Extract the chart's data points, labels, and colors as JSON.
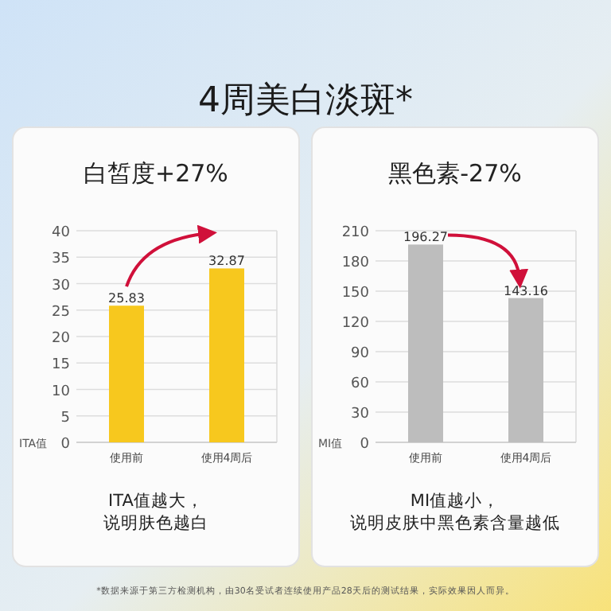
{
  "chart_data": [
    {
      "type": "bar",
      "title": "白皙度+27%",
      "subtitle": [
        "ITA值越大，",
        "说明肤色越白"
      ],
      "ylabel": "ITA值",
      "categories": [
        "使用前",
        "使用4周后"
      ],
      "values": [
        25.83,
        32.87
      ],
      "color": "#f7c81e",
      "ylim": [
        0,
        40
      ],
      "yticks": [
        0,
        5,
        10,
        15,
        20,
        25,
        30,
        35,
        40
      ],
      "grid": "y",
      "data_labels": true,
      "annotations": [
        "4周美白淡斑*"
      ]
    },
    {
      "type": "bar",
      "title": "黑色素-27%",
      "subtitle": [
        "MI值越小，",
        "说明皮肤中黑色素含量越低"
      ],
      "ylabel": "MI值",
      "categories": [
        "使用前",
        "使用4周后"
      ],
      "values": [
        196.27,
        143.16
      ],
      "color": "#bdbdbd",
      "ylim": [
        0,
        210
      ],
      "yticks": [
        0,
        30,
        60,
        90,
        120,
        150,
        180,
        210
      ],
      "grid": "y",
      "data_labels": true,
      "annotations": [
        "*数据来源于第三方检测机构，由30名受试者连续使用产品28天后的测试结果，实际效果因人而异。"
      ]
    }
  ]
}
